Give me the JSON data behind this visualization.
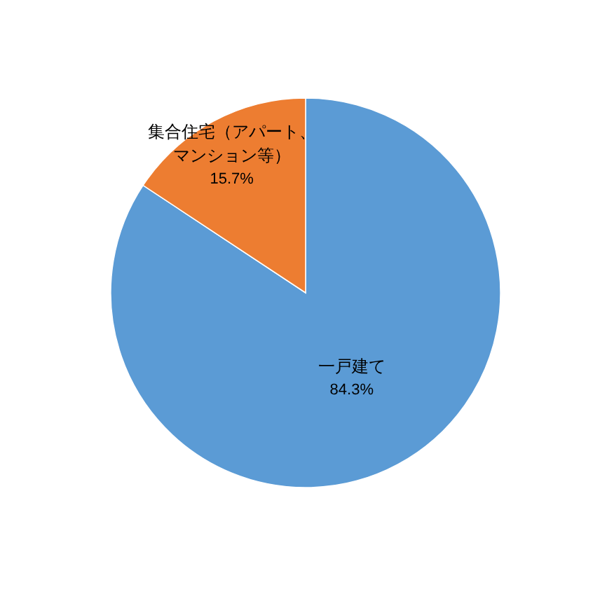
{
  "chart_data": {
    "type": "pie",
    "categories": [
      "一戸建て",
      "集合住宅（アパート、マンション等）"
    ],
    "values": [
      84.3,
      15.7
    ],
    "colors": [
      "#5b9bd5",
      "#ed7d31"
    ],
    "value_labels": [
      "84.3%",
      "15.7%"
    ]
  }
}
